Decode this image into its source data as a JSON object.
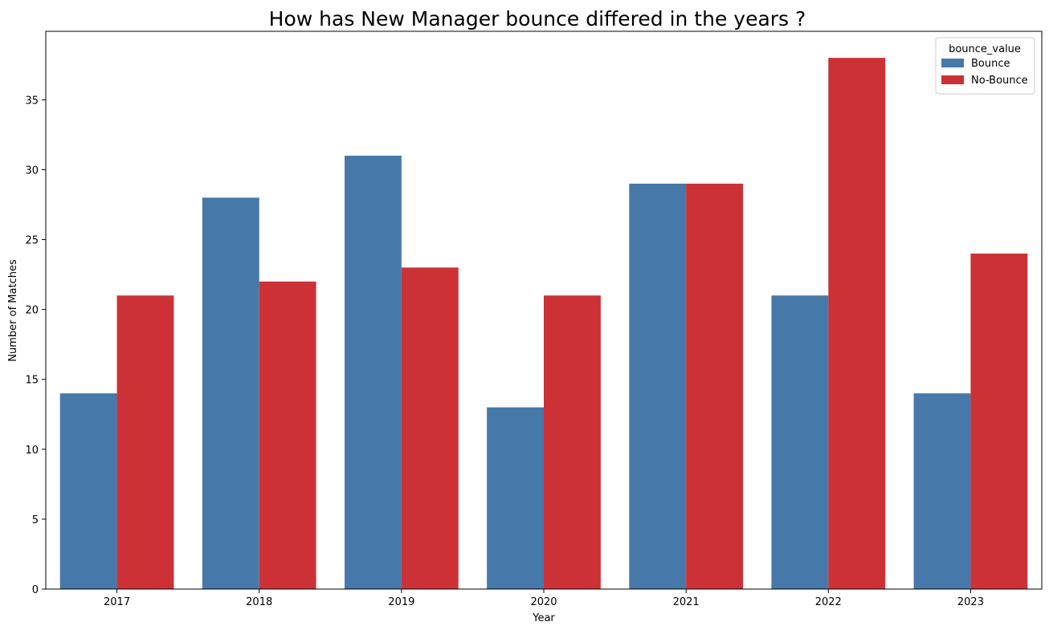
{
  "chart_data": {
    "type": "bar",
    "title": "How has New Manager bounce differed in the years ?",
    "xlabel": "Year",
    "ylabel": "Number of Matches",
    "categories": [
      "2017",
      "2018",
      "2019",
      "2020",
      "2021",
      "2022",
      "2023"
    ],
    "series": [
      {
        "name": "Bounce",
        "color": "#4679aa",
        "values": [
          14,
          28,
          31,
          13,
          29,
          21,
          14
        ]
      },
      {
        "name": "No-Bounce",
        "color": "#cc3235",
        "values": [
          21,
          22,
          23,
          21,
          29,
          38,
          24
        ]
      }
    ],
    "ylim": [
      0,
      39.9
    ],
    "yticks": [
      0,
      5,
      10,
      15,
      20,
      25,
      30,
      35
    ],
    "legend": {
      "title": "bounce_value",
      "placement": "top-right"
    },
    "grid": false
  }
}
